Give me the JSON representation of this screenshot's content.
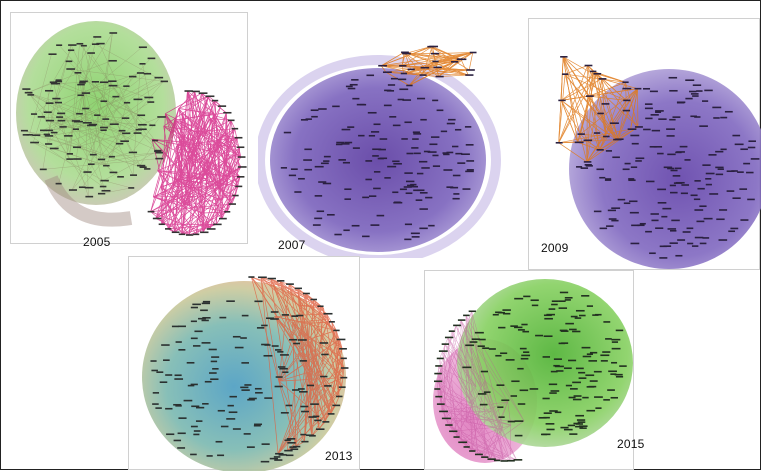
{
  "panels": [
    {
      "year": "2005",
      "clusters": [
        {
          "color": "#8fcc6a",
          "edge": "#7a5a4a",
          "nodes": 150
        },
        {
          "color": "#e0208a",
          "edge": "#d0107a",
          "nodes": 40
        }
      ]
    },
    {
      "year": "2007",
      "clusters": [
        {
          "color": "#6a4fb0",
          "edge": "#8f7ac8",
          "nodes": 160
        },
        {
          "color": "#f08a2a",
          "edge": "#e07a1a",
          "nodes": 25
        }
      ]
    },
    {
      "year": "2009",
      "clusters": [
        {
          "color": "#7256b8",
          "edge": "#9a86cc",
          "nodes": 170
        },
        {
          "color": "#f08a2a",
          "edge": "#e07a1a",
          "nodes": 25
        }
      ]
    },
    {
      "year": "2013",
      "clusters": [
        {
          "color": "#5aa6b0",
          "edge": "#c9b48a",
          "nodes": 150
        },
        {
          "color": "#e05a3a",
          "edge": "#e06040",
          "nodes": 35
        }
      ]
    },
    {
      "year": "2015",
      "clusters": [
        {
          "color": "#5cc03a",
          "edge": "#6a9a4a",
          "nodes": 160
        },
        {
          "color": "#d84aa0",
          "edge": "#d04a9a",
          "nodes": 40
        }
      ]
    }
  ]
}
